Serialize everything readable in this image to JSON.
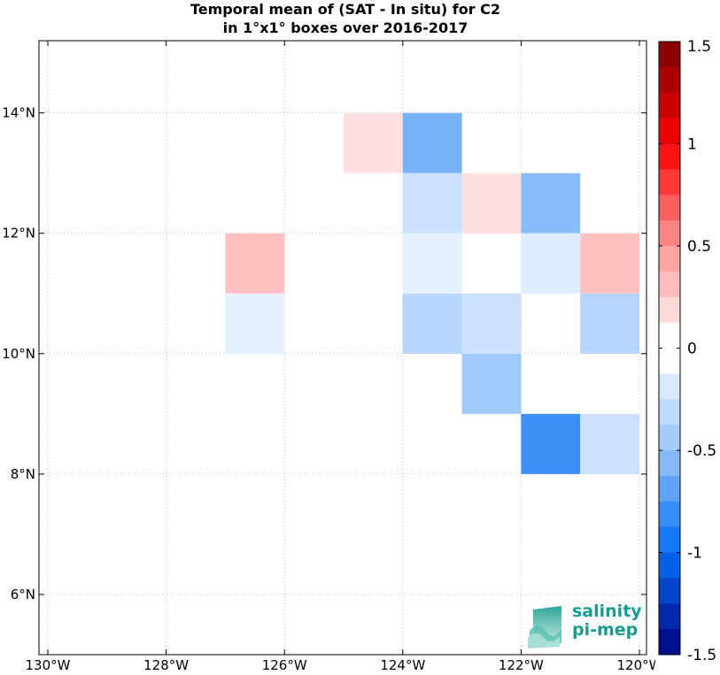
{
  "title": {
    "line1": "Temporal mean of (SAT - In situ) for C2",
    "line2": "in 1°x1° boxes over 2016-2017"
  },
  "map": {
    "lon_range": [
      -130,
      -120
    ],
    "lat_range": [
      5,
      15.2
    ],
    "lon_ticks": [
      {
        "value": -130,
        "label": "130°W"
      },
      {
        "value": -128,
        "label": "128°W"
      },
      {
        "value": -126,
        "label": "126°W"
      },
      {
        "value": -124,
        "label": "124°W"
      },
      {
        "value": -122,
        "label": "122°W"
      },
      {
        "value": -120,
        "label": "120°W"
      }
    ],
    "lat_ticks": [
      {
        "value": 6,
        "label": "6°N"
      },
      {
        "value": 8,
        "label": "8°N"
      },
      {
        "value": 10,
        "label": "10°N"
      },
      {
        "value": 12,
        "label": "12°N"
      },
      {
        "value": 14,
        "label": "14°N"
      }
    ],
    "grid": true,
    "cells": [
      {
        "lon": -125,
        "lat": 13,
        "value": 0.15
      },
      {
        "lon": -124,
        "lat": 13,
        "value": -0.6
      },
      {
        "lon": -124,
        "lat": 12,
        "value": -0.25
      },
      {
        "lon": -123,
        "lat": 12,
        "value": 0.15
      },
      {
        "lon": -122,
        "lat": 12,
        "value": -0.55
      },
      {
        "lon": -127,
        "lat": 11,
        "value": 0.3
      },
      {
        "lon": -124,
        "lat": 11,
        "value": -0.12
      },
      {
        "lon": -122,
        "lat": 11,
        "value": -0.15
      },
      {
        "lon": -121,
        "lat": 11,
        "value": 0.3
      },
      {
        "lon": -127,
        "lat": 10,
        "value": -0.12
      },
      {
        "lon": -124,
        "lat": 10,
        "value": -0.35
      },
      {
        "lon": -123,
        "lat": 10,
        "value": -0.25
      },
      {
        "lon": -121,
        "lat": 10,
        "value": -0.35
      },
      {
        "lon": -123,
        "lat": 9,
        "value": -0.45
      },
      {
        "lon": -122,
        "lat": 8,
        "value": -0.8
      },
      {
        "lon": -121,
        "lat": 8,
        "value": -0.25
      }
    ]
  },
  "colorbar": {
    "range": [
      -1.5,
      1.5
    ],
    "levels": 24,
    "ticks": [
      {
        "value": 1.5,
        "label": "1.5"
      },
      {
        "value": 1,
        "label": "1"
      },
      {
        "value": 0.5,
        "label": "0.5"
      },
      {
        "value": 0,
        "label": "0"
      },
      {
        "value": -0.5,
        "label": "-0.5"
      },
      {
        "value": -1,
        "label": "-1"
      },
      {
        "value": -1.5,
        "label": "-1.5"
      }
    ]
  },
  "logo": {
    "line1": "salinity",
    "line2": "pi-mep"
  }
}
